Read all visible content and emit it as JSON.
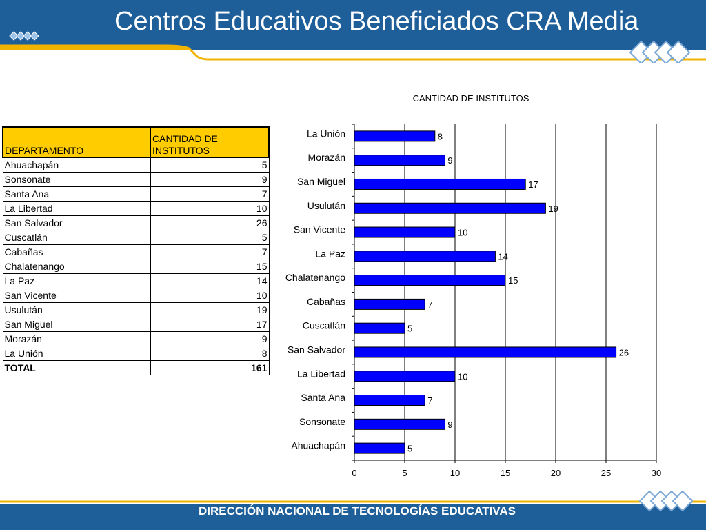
{
  "header": {
    "title": "Centros Educativos Beneficiados CRA Media"
  },
  "footer": {
    "text": "DIRECCIÓN NACIONAL DE TECNOLOGÍAS EDUCATIVAS"
  },
  "colors": {
    "header_blue": "#1f5f99",
    "accent_gold": "#f0b400",
    "bar_fill": "#0000ff",
    "table_header": "#ffcc00"
  },
  "table": {
    "headers": [
      "DEPARTAMENTO",
      "CANTIDAD DE INSTITUTOS"
    ],
    "rows": [
      [
        "Ahuachapán",
        "5"
      ],
      [
        "Sonsonate",
        "9"
      ],
      [
        "Santa Ana",
        "7"
      ],
      [
        "La Libertad",
        "10"
      ],
      [
        "San Salvador",
        "26"
      ],
      [
        "Cuscatlán",
        "5"
      ],
      [
        "Cabañas",
        "7"
      ],
      [
        "Chalatenango",
        "15"
      ],
      [
        "La Paz",
        "14"
      ],
      [
        "San Vicente",
        "10"
      ],
      [
        "Usulután",
        "19"
      ],
      [
        "San Miguel",
        "17"
      ],
      [
        "Morazán",
        "9"
      ],
      [
        "La Unión",
        "8"
      ]
    ],
    "total": [
      "TOTAL",
      "161"
    ]
  },
  "chart_data": {
    "type": "bar",
    "orientation": "horizontal",
    "title": "CANTIDAD DE INSTITUTOS",
    "categories": [
      "La Unión",
      "Morazán",
      "San Miguel",
      "Usulután",
      "San Vicente",
      "La Paz",
      "Chalatenango",
      "Cabañas",
      "Cuscatlán",
      "San Salvador",
      "La Libertad",
      "Santa Ana",
      "Sonsonate",
      "Ahuachapán"
    ],
    "values": [
      8,
      9,
      17,
      19,
      10,
      14,
      15,
      7,
      5,
      26,
      10,
      7,
      9,
      5
    ],
    "xlim": [
      0,
      30
    ],
    "xticks": [
      0,
      5,
      10,
      15,
      20,
      25,
      30
    ],
    "grid": true,
    "data_labels": true,
    "legend": "none"
  }
}
